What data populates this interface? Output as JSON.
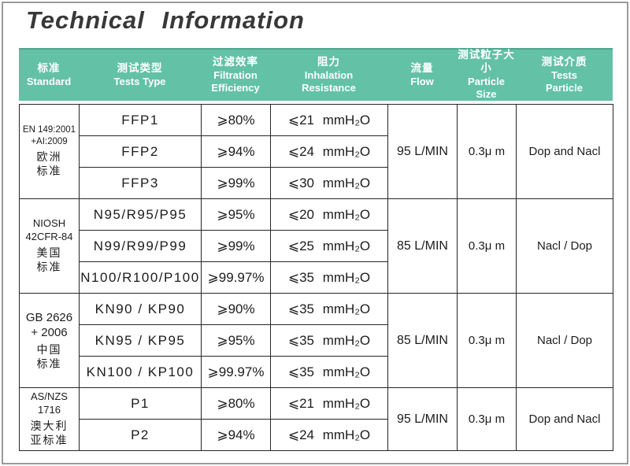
{
  "title": "Technical Information",
  "header": {
    "columns": [
      {
        "zh": "标准",
        "en": "Standard"
      },
      {
        "zh": "测试类型",
        "en": "Tests Type"
      },
      {
        "zh": "过滤效率",
        "en": "Filtration\nEfficiency"
      },
      {
        "zh": "阻力",
        "en": "Inhalation\nResistance"
      },
      {
        "zh": "流量",
        "en": "Flow"
      },
      {
        "zh": "测试粒子大小",
        "en": "Particle\nSize"
      },
      {
        "zh": "测试介质",
        "en": "Tests\nParticle"
      }
    ]
  },
  "groups": [
    {
      "code": "EN 149:2001\n+AI:2009",
      "zh": "欧洲\n标准",
      "flow": "95 L/MIN",
      "particle_size": "0.3μ m",
      "test_particle": "Dop and Nacl",
      "rows": [
        {
          "type": "FFP1",
          "efficiency": "⩾80%",
          "resistance": "⩽21 mmH₂O"
        },
        {
          "type": "FFP2",
          "efficiency": "⩾94%",
          "resistance": "⩽24 mmH₂O"
        },
        {
          "type": "FFP3",
          "efficiency": "⩾99%",
          "resistance": "⩽30 mmH₂O"
        }
      ]
    },
    {
      "code": "NIOSH\n42CFR-84",
      "zh": "美国\n标准",
      "flow": "85 L/MIN",
      "particle_size": "0.3μ m",
      "test_particle": "Nacl / Dop",
      "rows": [
        {
          "type": "N95/R95/P95",
          "efficiency": "⩾95%",
          "resistance": "⩽20 mmH₂O"
        },
        {
          "type": "N99/R99/P99",
          "efficiency": "⩾99%",
          "resistance": "⩽25 mmH₂O"
        },
        {
          "type": "N100/R100/P100",
          "efficiency": "⩾99.97%",
          "resistance": "⩽35 mmH₂O"
        }
      ]
    },
    {
      "code": "GB 2626\n+ 2006",
      "zh": "中国\n标准",
      "flow": "85 L/MIN",
      "particle_size": "0.3μ m",
      "test_particle": "Nacl / Dop",
      "rows": [
        {
          "type": "KN90 / KP90",
          "efficiency": "⩾90%",
          "resistance": "⩽35 mmH₂O"
        },
        {
          "type": "KN95 / KP95",
          "efficiency": "⩾95%",
          "resistance": "⩽35 mmH₂O"
        },
        {
          "type": "KN100 / KP100",
          "efficiency": "⩾99.97%",
          "resistance": "⩽35 mmH₂O"
        }
      ]
    },
    {
      "code": "AS/NZS\n1716",
      "zh": "澳大利\n亚标准",
      "flow": "95 L/MIN",
      "particle_size": "0.3μ m",
      "test_particle": "Dop and Nacl",
      "rows": [
        {
          "type": "P1",
          "efficiency": "⩾80%",
          "resistance": "⩽21 mmH₂O"
        },
        {
          "type": "P2",
          "efficiency": "⩾94%",
          "resistance": "⩽24 mmH₂O"
        }
      ]
    }
  ],
  "colors": {
    "header_bg": "#63c1a6",
    "header_text": "#ffffff",
    "border": "#262626",
    "title_text": "#383838",
    "frame": "#9a9a9a"
  }
}
